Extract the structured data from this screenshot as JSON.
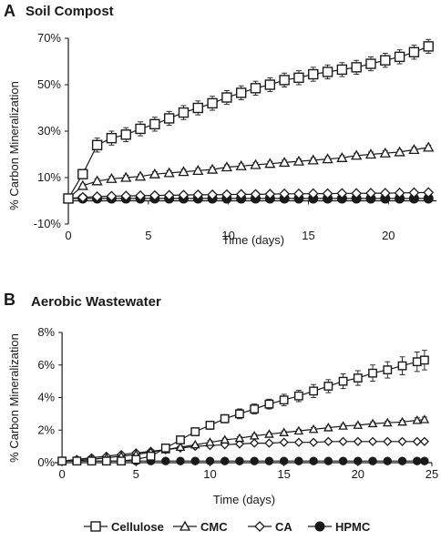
{
  "chart_data": [
    {
      "panel": "A",
      "type": "line",
      "title": "Soil Compost",
      "xlabel": "Time (days)",
      "ylabel": "% Carbon Mineralization",
      "xlim": [
        0,
        23
      ],
      "ylim": [
        -10,
        70
      ],
      "xticks": [
        0,
        5,
        10,
        15,
        20
      ],
      "xtick_labels": [
        "0",
        "5",
        "10",
        "15",
        "20"
      ],
      "yticks": [
        -10,
        10,
        30,
        50,
        70
      ],
      "ytick_labels": [
        "-10%",
        "10%",
        "30%",
        "50%",
        "70%"
      ],
      "grid": false,
      "series": [
        {
          "name": "Cellulose",
          "marker": "square",
          "x": [
            0,
            0.9,
            1.8,
            2.7,
            3.6,
            4.5,
            5.4,
            6.3,
            7.2,
            8.1,
            9.0,
            9.9,
            10.8,
            11.7,
            12.6,
            13.5,
            14.4,
            15.3,
            16.2,
            17.1,
            18.0,
            18.9,
            19.8,
            20.7,
            21.6,
            22.5
          ],
          "y": [
            1,
            11.5,
            24,
            27,
            28.5,
            31,
            33,
            35.5,
            38,
            40,
            42,
            44.5,
            46.5,
            48.5,
            50,
            52,
            53,
            54.5,
            55.5,
            56.5,
            57.5,
            59,
            60.5,
            62,
            64,
            66.5
          ],
          "error": [
            0.5,
            2,
            3,
            3,
            3,
            3,
            3,
            3,
            3,
            3,
            3,
            3,
            3,
            3,
            3,
            3,
            3,
            3,
            3,
            3,
            3,
            3,
            3,
            3,
            3,
            3
          ]
        },
        {
          "name": "CMC",
          "marker": "triangle",
          "x": [
            0,
            0.9,
            1.8,
            2.7,
            3.6,
            4.5,
            5.4,
            6.3,
            7.2,
            8.1,
            9.0,
            9.9,
            10.8,
            11.7,
            12.6,
            13.5,
            14.4,
            15.3,
            16.2,
            17.1,
            18.0,
            18.9,
            19.8,
            20.7,
            21.6,
            22.5
          ],
          "y": [
            1,
            6.5,
            8.5,
            9.5,
            10,
            10.5,
            11.5,
            12,
            12.5,
            13,
            13.5,
            14.5,
            15,
            15.5,
            16,
            16.5,
            17,
            17.5,
            18,
            18.5,
            19.5,
            20,
            20.5,
            21,
            22,
            23
          ],
          "error": [
            0.4,
            0.8,
            1,
            1,
            1,
            1,
            1,
            1,
            1,
            1,
            1,
            1,
            1,
            1,
            1,
            1,
            1,
            1,
            1,
            1,
            1,
            1,
            1,
            1,
            1,
            1
          ]
        },
        {
          "name": "CA",
          "marker": "diamond",
          "x": [
            0,
            0.9,
            1.8,
            2.7,
            3.6,
            4.5,
            5.4,
            6.3,
            7.2,
            8.1,
            9.0,
            9.9,
            10.8,
            11.7,
            12.6,
            13.5,
            14.4,
            15.3,
            16.2,
            17.1,
            18.0,
            18.9,
            19.8,
            20.7,
            21.6,
            22.5
          ],
          "y": [
            1,
            1.5,
            1.8,
            2,
            2.1,
            2.2,
            2.3,
            2.4,
            2.5,
            2.6,
            2.6,
            2.7,
            2.8,
            2.8,
            2.9,
            3,
            3,
            3.1,
            3.1,
            3.2,
            3.2,
            3.3,
            3.3,
            3.4,
            3.5,
            3.6
          ],
          "error": []
        },
        {
          "name": "HPMC",
          "marker": "circle",
          "x": [
            0,
            0.9,
            1.8,
            2.7,
            3.6,
            4.5,
            5.4,
            6.3,
            7.2,
            8.1,
            9.0,
            9.9,
            10.8,
            11.7,
            12.6,
            13.5,
            14.4,
            15.3,
            16.2,
            17.1,
            18.0,
            18.9,
            19.8,
            20.7,
            21.6,
            22.5
          ],
          "y": [
            1,
            1,
            1,
            1,
            1,
            1,
            1,
            1,
            1,
            1,
            1,
            1,
            1,
            1,
            1,
            1,
            1,
            1,
            1,
            1,
            1,
            1,
            1,
            1,
            1,
            1
          ],
          "error": []
        }
      ]
    },
    {
      "panel": "B",
      "type": "line",
      "title": "Aerobic Wastewater",
      "xlabel": "Time (days)",
      "ylabel": "% Carbon Mineralization",
      "xlim": [
        -0.5,
        25
      ],
      "ylim": [
        0,
        8
      ],
      "xticks": [
        0,
        5,
        10,
        15,
        20,
        25
      ],
      "xtick_labels": [
        "0",
        "5",
        "10",
        "15",
        "20",
        "25"
      ],
      "yticks": [
        0,
        2,
        4,
        6,
        8
      ],
      "ytick_labels": [
        "0%",
        "2%",
        "4%",
        "6%",
        "8%"
      ],
      "grid": false,
      "series": [
        {
          "name": "Cellulose",
          "marker": "square",
          "x": [
            0,
            1,
            2,
            3,
            4,
            5,
            6,
            7,
            8,
            9,
            10,
            11,
            12,
            13,
            14,
            15,
            16,
            17,
            18,
            19,
            20,
            21,
            22,
            23,
            24,
            24.5
          ],
          "y": [
            0.1,
            0.1,
            0.1,
            0.1,
            0.1,
            0.2,
            0.4,
            0.9,
            1.4,
            1.9,
            2.3,
            2.7,
            3.0,
            3.3,
            3.6,
            3.85,
            4.1,
            4.4,
            4.7,
            5.0,
            5.2,
            5.5,
            5.7,
            5.95,
            6.2,
            6.3
          ],
          "error": [
            0.05,
            0.05,
            0.05,
            0.05,
            0.05,
            0.05,
            0.1,
            0.15,
            0.2,
            0.2,
            0.25,
            0.25,
            0.3,
            0.3,
            0.3,
            0.35,
            0.35,
            0.4,
            0.4,
            0.45,
            0.45,
            0.5,
            0.5,
            0.55,
            0.6,
            0.6
          ]
        },
        {
          "name": "CMC",
          "marker": "triangle",
          "x": [
            0,
            1,
            2,
            3,
            4,
            5,
            6,
            7,
            8,
            9,
            10,
            11,
            12,
            13,
            14,
            15,
            16,
            17,
            18,
            19,
            20,
            21,
            22,
            23,
            24,
            24.5
          ],
          "y": [
            0.1,
            0.15,
            0.2,
            0.3,
            0.4,
            0.5,
            0.65,
            0.8,
            0.95,
            1.1,
            1.25,
            1.4,
            1.5,
            1.65,
            1.75,
            1.85,
            1.95,
            2.05,
            2.15,
            2.25,
            2.3,
            2.4,
            2.45,
            2.5,
            2.6,
            2.65
          ],
          "error": [
            0.05,
            0.05,
            0.05,
            0.05,
            0.05,
            0.05,
            0.05,
            0.05,
            0.05,
            0.05,
            0.1,
            0.1,
            0.1,
            0.1,
            0.1,
            0.1,
            0.1,
            0.1,
            0.1,
            0.1,
            0.1,
            0.1,
            0.1,
            0.1,
            0.15,
            0.15
          ]
        },
        {
          "name": "CA",
          "marker": "diamond",
          "x": [
            0,
            1,
            2,
            3,
            4,
            5,
            6,
            7,
            8,
            9,
            10,
            11,
            12,
            13,
            14,
            15,
            16,
            17,
            18,
            19,
            20,
            21,
            22,
            23,
            24,
            24.5
          ],
          "y": [
            0.1,
            0.2,
            0.3,
            0.4,
            0.5,
            0.6,
            0.7,
            0.8,
            0.9,
            1.0,
            1.05,
            1.1,
            1.15,
            1.2,
            1.2,
            1.25,
            1.25,
            1.25,
            1.3,
            1.3,
            1.3,
            1.3,
            1.3,
            1.3,
            1.3,
            1.3
          ],
          "error": []
        },
        {
          "name": "HPMC",
          "marker": "circle",
          "x": [
            0,
            1,
            2,
            3,
            4,
            5,
            6,
            7,
            8,
            9,
            10,
            11,
            12,
            13,
            14,
            15,
            16,
            17,
            18,
            19,
            20,
            21,
            22,
            23,
            24,
            24.5
          ],
          "y": [
            0.1,
            0.1,
            0.1,
            0.1,
            0.1,
            0.1,
            0.1,
            0.1,
            0.1,
            0.1,
            0.1,
            0.1,
            0.1,
            0.1,
            0.1,
            0.1,
            0.1,
            0.1,
            0.1,
            0.1,
            0.1,
            0.1,
            0.1,
            0.1,
            0.1,
            0.1
          ],
          "error": []
        }
      ]
    }
  ],
  "legend": {
    "position": "bottom-center",
    "entries": [
      {
        "label": "Cellulose",
        "marker": "square"
      },
      {
        "label": "CMC",
        "marker": "triangle"
      },
      {
        "label": "CA",
        "marker": "diamond"
      },
      {
        "label": "HPMC",
        "marker": "circle"
      }
    ]
  },
  "colors": {
    "ink": "#1a1a1a",
    "background": "#ffffff"
  }
}
